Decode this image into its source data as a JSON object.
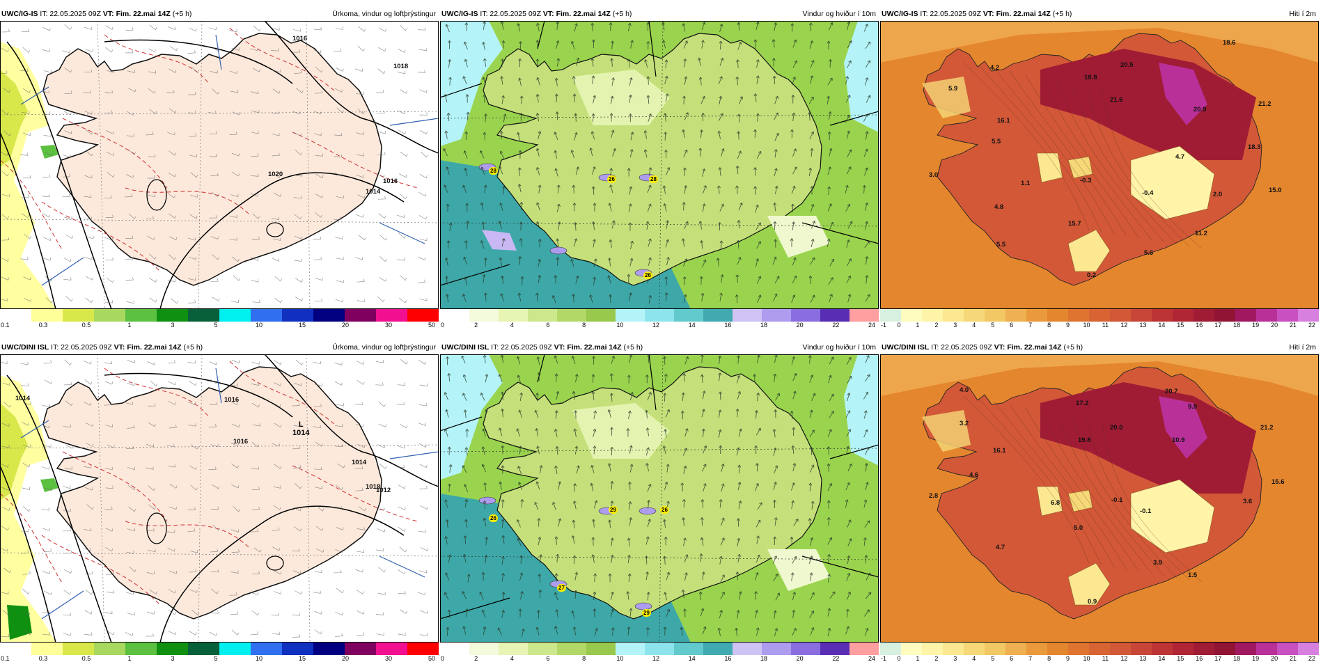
{
  "panels": [
    {
      "id": "p1",
      "model": "UWC/IG-IS",
      "it_label": "IT:",
      "it": "22.05.2025 09Z",
      "vt_label": "VT:",
      "vt": "Fim. 22.mai 14Z",
      "lead": "(+5 h)",
      "title": "Úrkoma, vindur og loftþrýstingur",
      "kind": "precip",
      "labels": [
        {
          "t": "1016"
        },
        {
          "t": "1018"
        },
        {
          "t": "1020"
        },
        {
          "t": "1016"
        },
        {
          "t": "1014"
        }
      ],
      "colorbar": {
        "colors": [
          "#ffffff",
          "#ffff99",
          "#d8e84a",
          "#a8d860",
          "#5cc040",
          "#109010",
          "#08603a",
          "#00f0f0",
          "#3070f0",
          "#1030c0",
          "#000080",
          "#800060",
          "#f01090",
          "#ff0000"
        ],
        "ticks": [
          "0.1",
          "0.3",
          "0.5",
          "1",
          "3",
          "5",
          "10",
          "15",
          "20",
          "30",
          "50"
        ]
      }
    },
    {
      "id": "p2",
      "model": "UWC/IG-IS",
      "it_label": "IT:",
      "it": "22.05.2025 09Z",
      "vt_label": "VT:",
      "vt": "Fim. 22.mai 14Z",
      "lead": "(+5 h)",
      "title": "Vindur og hviður í 10m",
      "kind": "wind",
      "labels": [
        {
          "t": "28"
        },
        {
          "t": "26"
        },
        {
          "t": "28"
        },
        {
          "t": "26"
        }
      ],
      "colorbar": {
        "colors": [
          "#ffffff",
          "#f4fadc",
          "#e6f4b4",
          "#cde88c",
          "#b2d868",
          "#98c84c",
          "#b4f4f8",
          "#8ee4ec",
          "#62cacc",
          "#40aab0",
          "#cfc3f4",
          "#ae9cee",
          "#8a6ee0",
          "#5a2eb4",
          "#ff9fa0"
        ],
        "ticks": [
          "0",
          "2",
          "4",
          "6",
          "8",
          "10",
          "12",
          "14",
          "16",
          "18",
          "20",
          "22",
          "24"
        ]
      }
    },
    {
      "id": "p3",
      "model": "UWC/IG-IS",
      "it_label": "IT:",
      "it": "22.05.2025 09Z",
      "vt_label": "VT:",
      "vt": "Fim. 22.mai 14Z",
      "lead": "(+5 h)",
      "title": "Hiti í 2m",
      "kind": "temp",
      "labels": [
        {
          "t": "18.6"
        },
        {
          "t": "4.2"
        },
        {
          "t": "20.5"
        },
        {
          "t": "5.9"
        },
        {
          "t": "18.8"
        },
        {
          "t": "21.6"
        },
        {
          "t": "20.9"
        },
        {
          "t": "21.2"
        },
        {
          "t": "16.1"
        },
        {
          "t": "5.5"
        },
        {
          "t": "4.7"
        },
        {
          "t": "18.3"
        },
        {
          "t": "3.0"
        },
        {
          "t": "1.1"
        },
        {
          "t": "-0.3"
        },
        {
          "t": "-0.4"
        },
        {
          "t": "2.0"
        },
        {
          "t": "15.0"
        },
        {
          "t": "4.8"
        },
        {
          "t": "15.7"
        },
        {
          "t": "11.2"
        },
        {
          "t": "5.5"
        },
        {
          "t": "5.6"
        },
        {
          "t": "0.2"
        }
      ],
      "colorbar": {
        "colors": [
          "#d8f0e0",
          "#fffcc0",
          "#fff4a8",
          "#fbe890",
          "#f6d878",
          "#f2c864",
          "#eeb050",
          "#ea9a3c",
          "#e4862e",
          "#de7430",
          "#d86434",
          "#d25838",
          "#c84638",
          "#bc3434",
          "#b02634",
          "#a01c34",
          "#921434",
          "#a01860",
          "#b83098",
          "#c850c0",
          "#d880e0"
        ],
        "ticks": [
          "-1",
          "0",
          "1",
          "2",
          "3",
          "4",
          "5",
          "6",
          "7",
          "8",
          "9",
          "10",
          "11",
          "12",
          "13",
          "14",
          "15",
          "16",
          "17",
          "18",
          "19",
          "20",
          "21",
          "22"
        ]
      }
    },
    {
      "id": "p4",
      "model": "UWC/DINI ISL",
      "it_label": "IT:",
      "it": "22.05.2025 09Z",
      "vt_label": "VT:",
      "vt": "Fim. 22.mai 14Z",
      "lead": "(+5 h)",
      "title": "Úrkoma, vindur og loftþrýstingur",
      "kind": "precip",
      "labels": [
        {
          "t": "1014"
        },
        {
          "t": "1016"
        },
        {
          "t": "1016"
        },
        {
          "t": "1014"
        },
        {
          "t": "1018"
        },
        {
          "t": "1012"
        }
      ],
      "low": {
        "letter": "L",
        "value": "1014"
      },
      "colorbar": {
        "colors": [
          "#ffffff",
          "#ffff99",
          "#d8e84a",
          "#a8d860",
          "#5cc040",
          "#109010",
          "#08603a",
          "#00f0f0",
          "#3070f0",
          "#1030c0",
          "#000080",
          "#800060",
          "#f01090",
          "#ff0000"
        ],
        "ticks": [
          "0.1",
          "0.3",
          "0.5",
          "1",
          "3",
          "5",
          "10",
          "15",
          "20",
          "30",
          "50"
        ]
      }
    },
    {
      "id": "p5",
      "model": "UWC/DINI ISL",
      "it_label": "IT:",
      "it": "22.05.2025 09Z",
      "vt_label": "VT:",
      "vt": "Fim. 22.mai 14Z",
      "lead": "(+5 h)",
      "title": "Vindur og hviður í 10m",
      "kind": "wind",
      "labels": [
        {
          "t": "26"
        },
        {
          "t": "29"
        },
        {
          "t": "26"
        },
        {
          "t": "27"
        },
        {
          "t": "29"
        }
      ],
      "colorbar": {
        "colors": [
          "#ffffff",
          "#f4fadc",
          "#e6f4b4",
          "#cde88c",
          "#b2d868",
          "#98c84c",
          "#b4f4f8",
          "#8ee4ec",
          "#62cacc",
          "#40aab0",
          "#cfc3f4",
          "#ae9cee",
          "#8a6ee0",
          "#5a2eb4",
          "#ff9fa0"
        ],
        "ticks": [
          "0",
          "2",
          "4",
          "6",
          "8",
          "10",
          "12",
          "14",
          "16",
          "18",
          "20",
          "22",
          "24"
        ]
      }
    },
    {
      "id": "p6",
      "model": "UWC/DINI ISL",
      "it_label": "IT:",
      "it": "22.05.2025 09Z",
      "vt_label": "VT:",
      "vt": "Fim. 22.mai 14Z",
      "lead": "(+5 h)",
      "title": "Hiti í 2m",
      "kind": "temp",
      "labels": [
        {
          "t": "4.0"
        },
        {
          "t": "20.7"
        },
        {
          "t": "3.2"
        },
        {
          "t": "17.2"
        },
        {
          "t": "9.9"
        },
        {
          "t": "20.0"
        },
        {
          "t": "21.2"
        },
        {
          "t": "16.1"
        },
        {
          "t": "19.8"
        },
        {
          "t": "10.9"
        },
        {
          "t": "4.6"
        },
        {
          "t": "15.6"
        },
        {
          "t": "2.8"
        },
        {
          "t": "6.8"
        },
        {
          "t": "-0.1"
        },
        {
          "t": "-0.1"
        },
        {
          "t": "3.6"
        },
        {
          "t": "5.0"
        },
        {
          "t": "4.7"
        },
        {
          "t": "3.9"
        },
        {
          "t": "1.5"
        },
        {
          "t": "0.9"
        }
      ],
      "colorbar": {
        "colors": [
          "#d8f0e0",
          "#fffcc0",
          "#fff4a8",
          "#fbe890",
          "#f6d878",
          "#f2c864",
          "#eeb050",
          "#ea9a3c",
          "#e4862e",
          "#de7430",
          "#d86434",
          "#d25838",
          "#c84638",
          "#bc3434",
          "#b02634",
          "#a01c34",
          "#921434",
          "#a01860",
          "#b83098",
          "#c850c0",
          "#d880e0"
        ],
        "ticks": [
          "-1",
          "0",
          "1",
          "2",
          "3",
          "4",
          "5",
          "6",
          "7",
          "8",
          "9",
          "10",
          "11",
          "12",
          "13",
          "14",
          "15",
          "16",
          "17",
          "18",
          "19",
          "20",
          "21",
          "22"
        ]
      }
    }
  ]
}
